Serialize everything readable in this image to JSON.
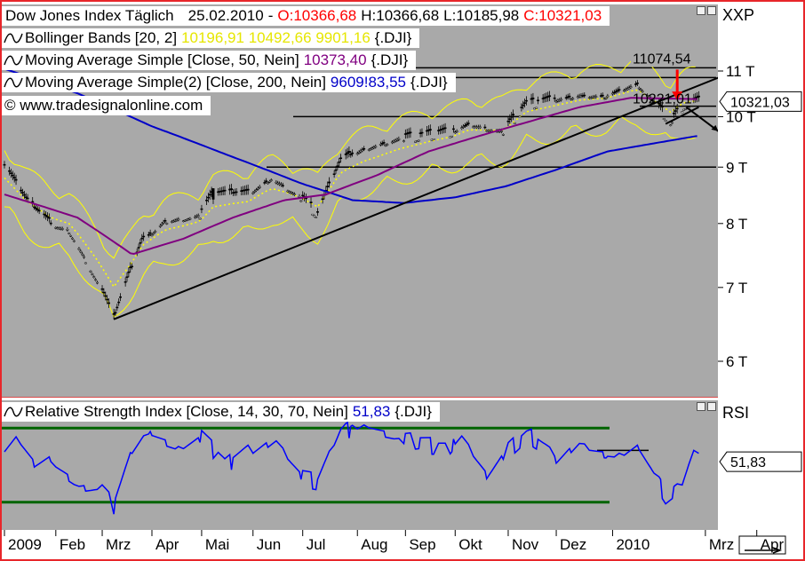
{
  "header": {
    "index_name": "Dow Jones Index Täglich",
    "date": "25.02.2010",
    "open": "O:10366,68",
    "high": "H:10366,68",
    "low": "L:10185,98",
    "close": "C:10321,03"
  },
  "legends": {
    "bollinger": {
      "label": "Bollinger Bands [20, 2]",
      "values": "10196,91 10492,66 9901,16",
      "suffix": "{.DJI}"
    },
    "ma50": {
      "label": "Moving Average Simple [Close, 50, Nein]",
      "value": "10373,40",
      "suffix": "{.DJI}"
    },
    "ma200": {
      "label": "Moving Average Simple(2) [Close, 200, Nein]",
      "value": "9609!83,55",
      "suffix": "{.DJI}"
    },
    "copyright": "© www.tradesignalonline.com",
    "rsi": {
      "label": "Relative Strength Index [Close, 14, 30, 70, Nein]",
      "value": "51,83",
      "suffix": "{.DJI}"
    }
  },
  "axis_right": {
    "main_title": "XXP",
    "main_ticks": [
      "11 T",
      "10 T",
      "9 T",
      "8 T",
      "7 T",
      "6 T"
    ],
    "current_value": "10321,03",
    "rsi_title": "RSI",
    "rsi_current": "51,83"
  },
  "annotations": {
    "resistance_label": "11074,54",
    "support_label": "10221,01"
  },
  "colors": {
    "frame": "#e8262a",
    "plot_bg": "#a9a9a9",
    "bollinger": "#ffff00",
    "ma50": "#800080",
    "ma200": "#0000c8",
    "rsi_line": "#0000ff",
    "rsi_bands": "#006400",
    "arrow_red": "#ff0000",
    "close_red": "#ff0000"
  },
  "chart_data": [
    {
      "type": "candlestick",
      "title": "Dow Jones Index Täglich",
      "x_labels": [
        "2009",
        "Feb",
        "Mrz",
        "Apr",
        "Mai",
        "Jun",
        "Jul",
        "Aug",
        "Sep",
        "Okt",
        "Nov",
        "Dez",
        "2010",
        "Mrz",
        "Apr"
      ],
      "y_ticks": [
        11000,
        10000,
        9000,
        8000,
        7000,
        6000
      ],
      "ylim": [
        5500,
        11600
      ],
      "y_scale": "log",
      "series": [
        {
          "name": "Dow Jones",
          "kind": "close",
          "dates": [
            "2009-01-02",
            "2009-01-15",
            "2009-01-30",
            "2009-02-10",
            "2009-02-27",
            "2009-03-09",
            "2009-03-26",
            "2009-04-09",
            "2009-04-30",
            "2009-05-08",
            "2009-05-29",
            "2009-06-12",
            "2009-06-30",
            "2009-07-10",
            "2009-07-24",
            "2009-08-07",
            "2009-08-28",
            "2009-09-11",
            "2009-09-30",
            "2009-10-09",
            "2009-10-30",
            "2009-11-13",
            "2009-11-30",
            "2009-12-15",
            "2009-12-31",
            "2010-01-19",
            "2010-02-08",
            "2010-02-16",
            "2010-02-25"
          ],
          "values": [
            9000,
            8400,
            8000,
            7900,
            7100,
            6550,
            7700,
            8050,
            8150,
            8500,
            8500,
            8800,
            8450,
            8150,
            9100,
            9350,
            9550,
            9600,
            9700,
            9850,
            9700,
            10250,
            10350,
            10450,
            10450,
            10700,
            9900,
            10250,
            10321
          ]
        },
        {
          "name": "Moving Average Simple [Close, 50, Nein]",
          "kind": "ma50",
          "dates": [
            "2009-01-02",
            "2009-02-15",
            "2009-03-20",
            "2009-04-20",
            "2009-05-20",
            "2009-06-20",
            "2009-07-15",
            "2009-08-15",
            "2009-09-15",
            "2009-10-15",
            "2009-11-15",
            "2009-12-15",
            "2010-01-15",
            "2010-02-25"
          ],
          "values": [
            8500,
            8100,
            7500,
            7750,
            8100,
            8400,
            8500,
            8850,
            9300,
            9600,
            9900,
            10200,
            10400,
            10373
          ]
        },
        {
          "name": "Moving Average Simple(2) [Close, 200, Nein]",
          "kind": "ma200",
          "dates": [
            "2009-01-02",
            "2009-02-15",
            "2009-04-01",
            "2009-05-15",
            "2009-06-30",
            "2009-07-31",
            "2009-08-31",
            "2009-10-01",
            "2009-11-01",
            "2009-12-01",
            "2010-01-01",
            "2010-02-25"
          ],
          "values": [
            11050,
            10500,
            9800,
            9250,
            8700,
            8400,
            8350,
            8450,
            8650,
            8950,
            9300,
            9610
          ]
        }
      ],
      "bollinger_last": {
        "middle": 10196.91,
        "upper": 10492.66,
        "lower": 9901.16
      },
      "horizontal_levels": [
        11074.54,
        10850,
        10221.01,
        10000,
        9000
      ],
      "trendlines": [
        {
          "from": {
            "date": "2009-03-09",
            "value": 6550
          },
          "to": {
            "date": "2010-04-20",
            "value": 11500
          }
        },
        {
          "from": {
            "date": "2010-02-05",
            "value": 9850
          },
          "to": {
            "date": "2010-02-25",
            "value": 10200
          }
        }
      ]
    },
    {
      "type": "line",
      "title": "Relative Strength Index [Close, 14, 30, 70, Nein]",
      "ylim": [
        15,
        85
      ],
      "bands": [
        70,
        30
      ],
      "series": [
        {
          "name": "RSI",
          "dates": [
            "2009-01-02",
            "2009-01-10",
            "2009-01-20",
            "2009-02-01",
            "2009-02-15",
            "2009-03-01",
            "2009-03-09",
            "2009-03-20",
            "2009-04-01",
            "2009-04-15",
            "2009-05-01",
            "2009-05-15",
            "2009-06-01",
            "2009-06-15",
            "2009-07-01",
            "2009-07-10",
            "2009-07-25",
            "2009-08-10",
            "2009-08-25",
            "2009-09-10",
            "2009-09-25",
            "2009-10-05",
            "2009-10-20",
            "2009-11-01",
            "2009-11-15",
            "2009-12-01",
            "2009-12-15",
            "2010-01-05",
            "2010-01-20",
            "2010-02-05",
            "2010-02-12",
            "2010-02-20",
            "2010-02-25"
          ],
          "values": [
            55,
            62,
            48,
            52,
            40,
            38,
            28,
            55,
            68,
            60,
            66,
            50,
            58,
            64,
            44,
            40,
            68,
            72,
            65,
            62,
            58,
            66,
            45,
            58,
            66,
            52,
            62,
            54,
            60,
            33,
            36,
            56,
            52
          ]
        }
      ],
      "horizontal_levels": [
        58
      ]
    }
  ]
}
